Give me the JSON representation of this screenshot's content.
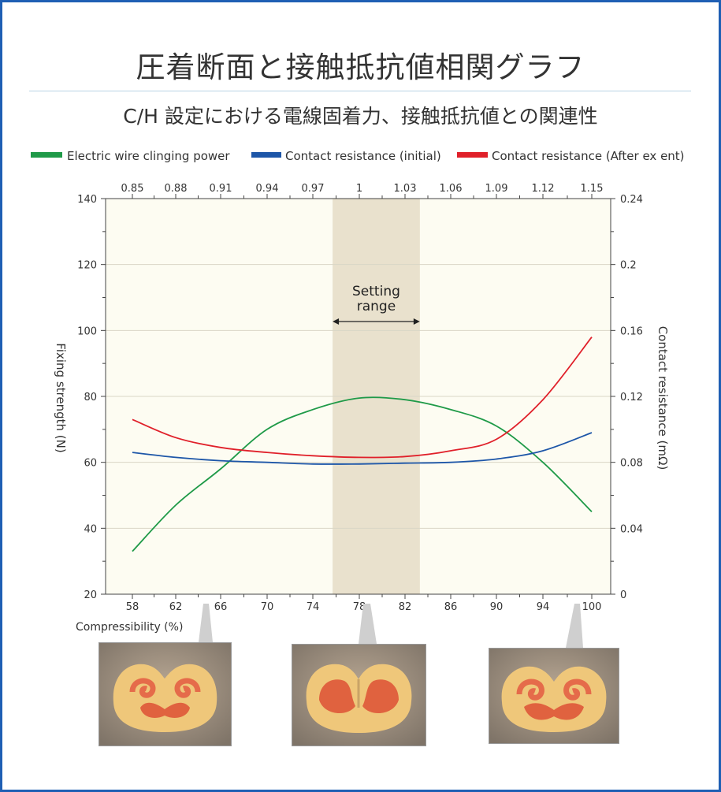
{
  "title": "圧着断面と接触抵抗値相関グラフ",
  "subtitle": "C/H 設定における電線固着力、接触抵抗値との関連性",
  "chart_data": {
    "type": "line",
    "xlabel": "Compressibility (%)",
    "ylabel_left": "Fixing strength (N)",
    "ylabel_right": "Contact resistance (mΩ)",
    "x_ticks": [
      "58",
      "62",
      "66",
      "70",
      "74",
      "78",
      "82",
      "86",
      "90",
      "94",
      "100"
    ],
    "x_top_ticks": [
      "0.85",
      "0.88",
      "0.91",
      "0.94",
      "0.97",
      "1",
      "1.03",
      "1.06",
      "1.09",
      "1.12",
      "1.15"
    ],
    "y_left_ticks": [
      "20",
      "40",
      "60",
      "80",
      "100",
      "120",
      "140"
    ],
    "y_right_ticks": [
      "0",
      "0.04",
      "0.08",
      "0.12",
      "0.16",
      "0.2",
      "0.24"
    ],
    "ylim_left": [
      20,
      140
    ],
    "ylim_right": [
      0,
      0.24
    ],
    "grid": true,
    "legend_position": "top",
    "setting_range": {
      "label_line1": "Setting",
      "label_line2": "range",
      "x_range": [
        75.7,
        83.3
      ]
    },
    "series": [
      {
        "name": "Electric wire clinging power",
        "axis": "left",
        "color": "#1f9a48",
        "x": [
          58,
          62,
          66,
          70,
          74,
          78,
          82,
          86,
          90,
          94,
          100
        ],
        "y": [
          33,
          47,
          58,
          70,
          76,
          79.5,
          79,
          76,
          71,
          60,
          45
        ]
      },
      {
        "name": "Contact resistance (initial)",
        "axis": "right",
        "color": "#1d56a8",
        "x": [
          58,
          62,
          66,
          70,
          74,
          78,
          82,
          86,
          90,
          94,
          100
        ],
        "y": [
          0.086,
          0.083,
          0.081,
          0.08,
          0.079,
          0.079,
          0.0795,
          0.08,
          0.082,
          0.087,
          0.098
        ]
      },
      {
        "name": "Contact resistance (After ex ent)",
        "axis": "right",
        "color": "#e0202a",
        "x": [
          58,
          62,
          66,
          70,
          74,
          78,
          82,
          86,
          90,
          94,
          100
        ],
        "y": [
          0.106,
          0.095,
          0.089,
          0.086,
          0.084,
          0.083,
          0.0835,
          0.087,
          0.094,
          0.118,
          0.156
        ]
      }
    ]
  }
}
